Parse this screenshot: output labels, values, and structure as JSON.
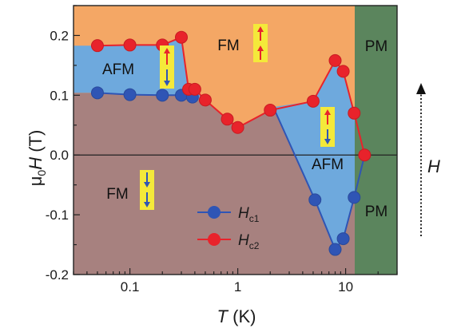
{
  "chart_data": {
    "type": "scatter",
    "xscale": "log",
    "xlim": [
      0.03,
      30
    ],
    "ylim": [
      -0.2,
      0.25
    ],
    "x_ticks": [
      {
        "value": 0.1,
        "label": "0.1"
      },
      {
        "value": 1,
        "label": "1"
      },
      {
        "value": 10,
        "label": "10"
      }
    ],
    "y_ticks": [
      {
        "value": 0.2,
        "label": "0.2"
      },
      {
        "value": 0.1,
        "label": "0.1"
      },
      {
        "value": 0.0,
        "label": "0.0"
      },
      {
        "value": -0.1,
        "label": "-0.1"
      },
      {
        "value": -0.2,
        "label": "-0.2"
      }
    ],
    "xlabel": {
      "main": "T",
      "unit": " (K)"
    },
    "ylabel": {
      "prefix": "μ",
      "sub": "0",
      "main": "H",
      "unit": " (T)"
    },
    "legend": [
      {
        "main": "H",
        "sub": "c1",
        "color": "#2f55b5"
      },
      {
        "main": "H",
        "sub": "c2",
        "color": "#e8232b"
      }
    ],
    "series": [
      {
        "id": "Hc1",
        "color": "#2f55b5",
        "points": [
          {
            "x": 0.05,
            "y": 0.104
          },
          {
            "x": 0.1,
            "y": 0.101
          },
          {
            "x": 0.2,
            "y": 0.1
          },
          {
            "x": 0.3,
            "y": 0.1
          },
          {
            "x": 0.38,
            "y": 0.097
          },
          {
            "x": 5.2,
            "y": -0.075
          },
          {
            "x": 8.0,
            "y": -0.158
          },
          {
            "x": 9.5,
            "y": -0.14
          },
          {
            "x": 12.0,
            "y": -0.071
          }
        ]
      },
      {
        "id": "Hc2",
        "color": "#e8232b",
        "points": [
          {
            "x": 0.05,
            "y": 0.183
          },
          {
            "x": 0.1,
            "y": 0.184
          },
          {
            "x": 0.2,
            "y": 0.184
          },
          {
            "x": 0.3,
            "y": 0.197
          },
          {
            "x": 0.35,
            "y": 0.11
          },
          {
            "x": 0.4,
            "y": 0.11
          },
          {
            "x": 0.5,
            "y": 0.092
          },
          {
            "x": 0.8,
            "y": 0.06
          },
          {
            "x": 1.0,
            "y": 0.046
          },
          {
            "x": 2.0,
            "y": 0.075
          },
          {
            "x": 5.0,
            "y": 0.09
          },
          {
            "x": 8.0,
            "y": 0.158
          },
          {
            "x": 9.5,
            "y": 0.14
          },
          {
            "x": 12.0,
            "y": 0.07
          },
          {
            "x": 15.0,
            "y": 0.0
          }
        ]
      }
    ],
    "regions": [
      {
        "label": "FM",
        "color": "#f4a765"
      },
      {
        "label": "AFM",
        "color": "#6ea9dd"
      },
      {
        "label": "FM",
        "color": "#a7817f"
      },
      {
        "label": "AFM",
        "color": "#6ea9dd"
      },
      {
        "label": "PM",
        "color": "#5b855d"
      },
      {
        "label": "PM",
        "color": "#5b855d"
      }
    ],
    "field_arrow_label": "H",
    "grid": false
  }
}
